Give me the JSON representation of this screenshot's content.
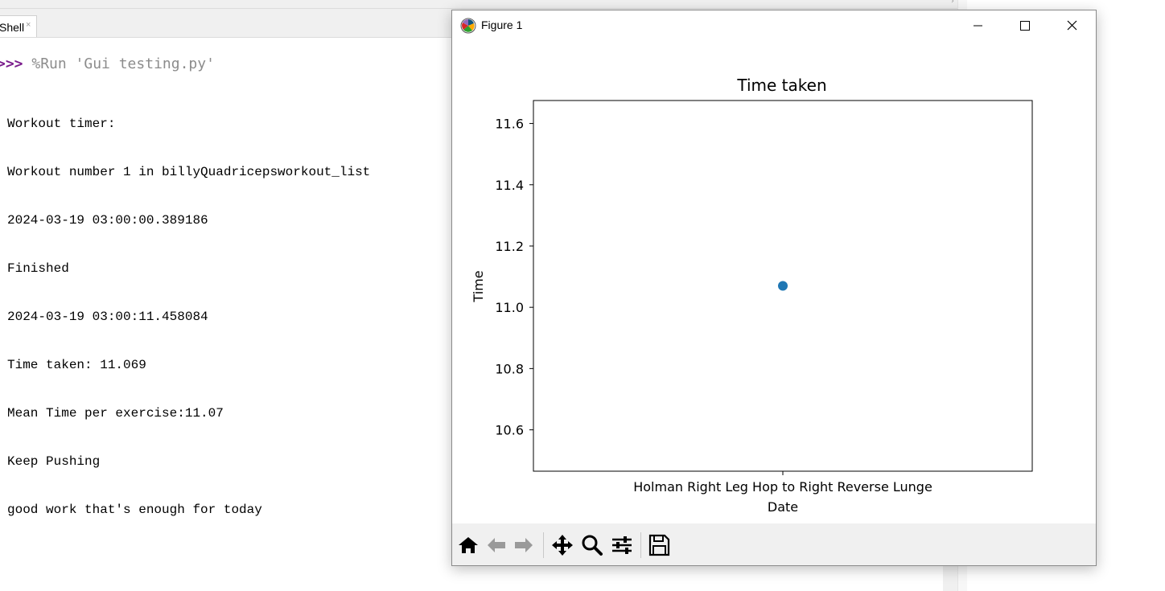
{
  "ide": {
    "tab_label": "Shell",
    "tab_close": "×",
    "shell": {
      "prompt": ">>>",
      "command": " %Run 'Gui testing.py'",
      "output_lines": [
        "Workout timer:",
        "Workout number 1 in billyQuadricepsworkout_list",
        "2024-03-19 03:00:00.389186",
        "Finished",
        "2024-03-19 03:00:11.458084",
        "Time taken: 11.069",
        "Mean Time per exercise:11.07",
        "Keep Pushing",
        "good work that's enough for today"
      ]
    }
  },
  "figure_window": {
    "title": "Figure 1",
    "app_icon": "matplotlib-icon",
    "controls": [
      "minimize-icon",
      "maximize-icon",
      "close-icon"
    ],
    "toolbar": [
      {
        "name": "home-icon"
      },
      {
        "name": "back-arrow-icon"
      },
      {
        "name": "forward-arrow-icon"
      },
      {
        "name": "pan-icon"
      },
      {
        "name": "zoom-icon"
      },
      {
        "name": "subplots-config-icon"
      },
      {
        "name": "save-icon"
      }
    ]
  },
  "chart_data": {
    "type": "scatter",
    "title": "Time taken",
    "xlabel": "Date",
    "ylabel": "Time",
    "categories": [
      "Holman Right Leg Hop to Right Reverse Lunge"
    ],
    "points": [
      {
        "x": "Holman Right Leg Hop to Right Reverse Lunge",
        "y": 11.07
      }
    ],
    "ylim": [
      10.465,
      11.675
    ],
    "yticks": [
      10.6,
      10.8,
      11.0,
      11.2,
      11.4,
      11.6
    ],
    "ytick_labels": [
      "10.6",
      "10.8",
      "11.0",
      "11.2",
      "11.4",
      "11.6"
    ],
    "grid": false,
    "marker_color": "#1f77b4"
  }
}
